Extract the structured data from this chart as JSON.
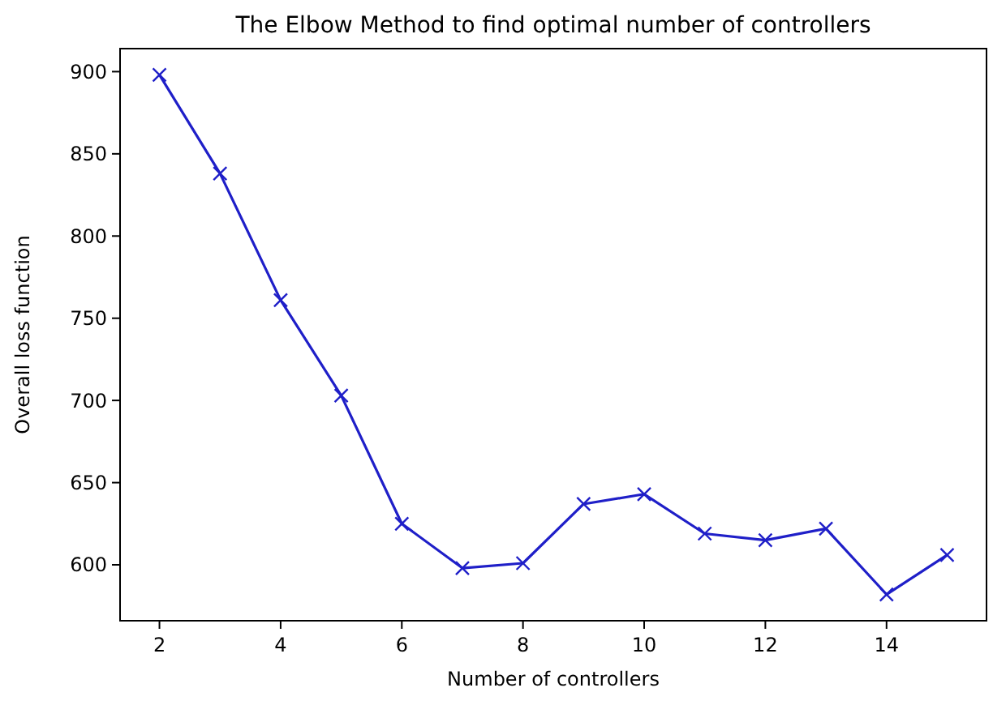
{
  "chart_data": {
    "type": "line",
    "title": "The Elbow Method to find optimal number of controllers",
    "xlabel": "Number of controllers",
    "ylabel": "Overall loss function",
    "x": [
      2,
      3,
      4,
      5,
      6,
      7,
      8,
      9,
      10,
      11,
      12,
      13,
      14,
      15
    ],
    "series": [
      {
        "color": "#1f1fc8",
        "values": [
          898,
          838,
          761,
          703,
          625,
          598,
          601,
          637,
          643,
          619,
          615,
          622,
          582,
          606
        ]
      }
    ],
    "xlim": [
      1.35,
      15.65
    ],
    "ylim": [
      566,
      914
    ],
    "xticks": [
      2,
      4,
      6,
      8,
      10,
      12,
      14
    ],
    "yticks": [
      600,
      650,
      700,
      750,
      800,
      850,
      900
    ],
    "marker": "cross"
  }
}
